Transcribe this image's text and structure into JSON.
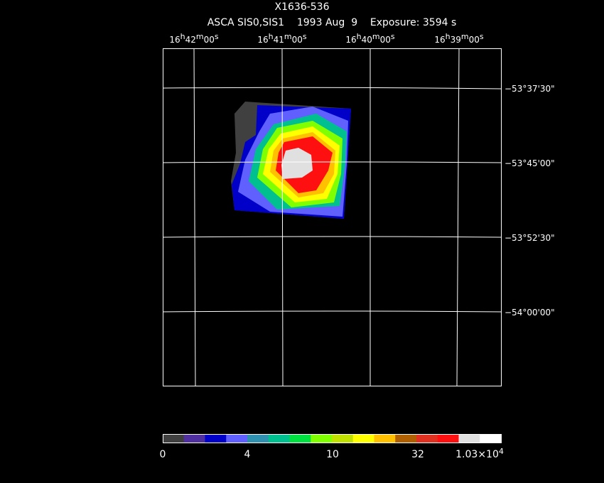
{
  "title": "X1636-536",
  "subtitle": "ASCA SIS0,SIS1    1993 Aug  9    Exposure: 3594 s",
  "ra_labels": [
    [
      "16",
      "h",
      "42",
      "m",
      "00",
      "s"
    ],
    [
      "16",
      "h",
      "41",
      "m",
      "00",
      "s"
    ],
    [
      "16",
      "h",
      "40",
      "m",
      "00",
      "s"
    ],
    [
      "16",
      "h",
      "39",
      "m",
      "00",
      "s"
    ]
  ],
  "dec_labels": [
    "−53°37'30\"",
    "−53°45'00\"",
    "−53°52'30\"",
    "−54°00'00\""
  ],
  "colorbar": {
    "colors": [
      "#404040",
      "#5030a0",
      "#0000c8",
      "#6060ff",
      "#3090b0",
      "#00c090",
      "#00e040",
      "#80ff00",
      "#c0e000",
      "#ffff00",
      "#ffc000",
      "#b06000",
      "#e03020",
      "#ff1010",
      "#e0e0e0",
      "#ffffff"
    ],
    "labels": [
      [
        "0"
      ],
      [
        "4"
      ],
      [
        "10"
      ],
      [
        "32"
      ],
      [
        "1.03×10",
        "4"
      ]
    ]
  }
}
